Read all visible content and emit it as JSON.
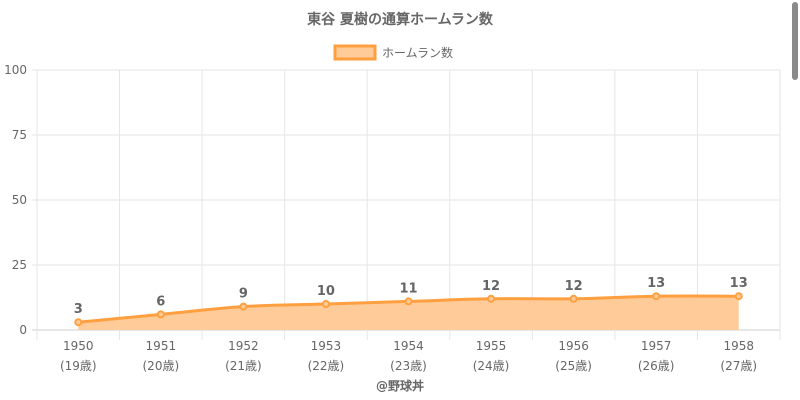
{
  "chart_data": {
    "type": "area",
    "title": "東谷 夏樹の通算ホームラン数",
    "legend": {
      "label": "ホームラン数",
      "position": "top"
    },
    "categories": [
      "1950",
      "1951",
      "1952",
      "1953",
      "1954",
      "1955",
      "1956",
      "1957",
      "1958"
    ],
    "sublabels": [
      "(19歳)",
      "(20歳)",
      "(21歳)",
      "(22歳)",
      "(23歳)",
      "(24歳)",
      "(25歳)",
      "(26歳)",
      "(27歳)"
    ],
    "series": [
      {
        "name": "ホームラン数",
        "values": [
          3,
          6,
          9,
          10,
          11,
          12,
          12,
          13,
          13
        ]
      }
    ],
    "ylim": [
      0,
      100
    ],
    "yticks": [
      0,
      25,
      50,
      75,
      100
    ],
    "grid": true,
    "credit": "@野球丼",
    "colors": {
      "line": "#ff9f40",
      "fill": "#ffcc99",
      "grid": "#e6e6e6",
      "text": "#666666"
    }
  }
}
